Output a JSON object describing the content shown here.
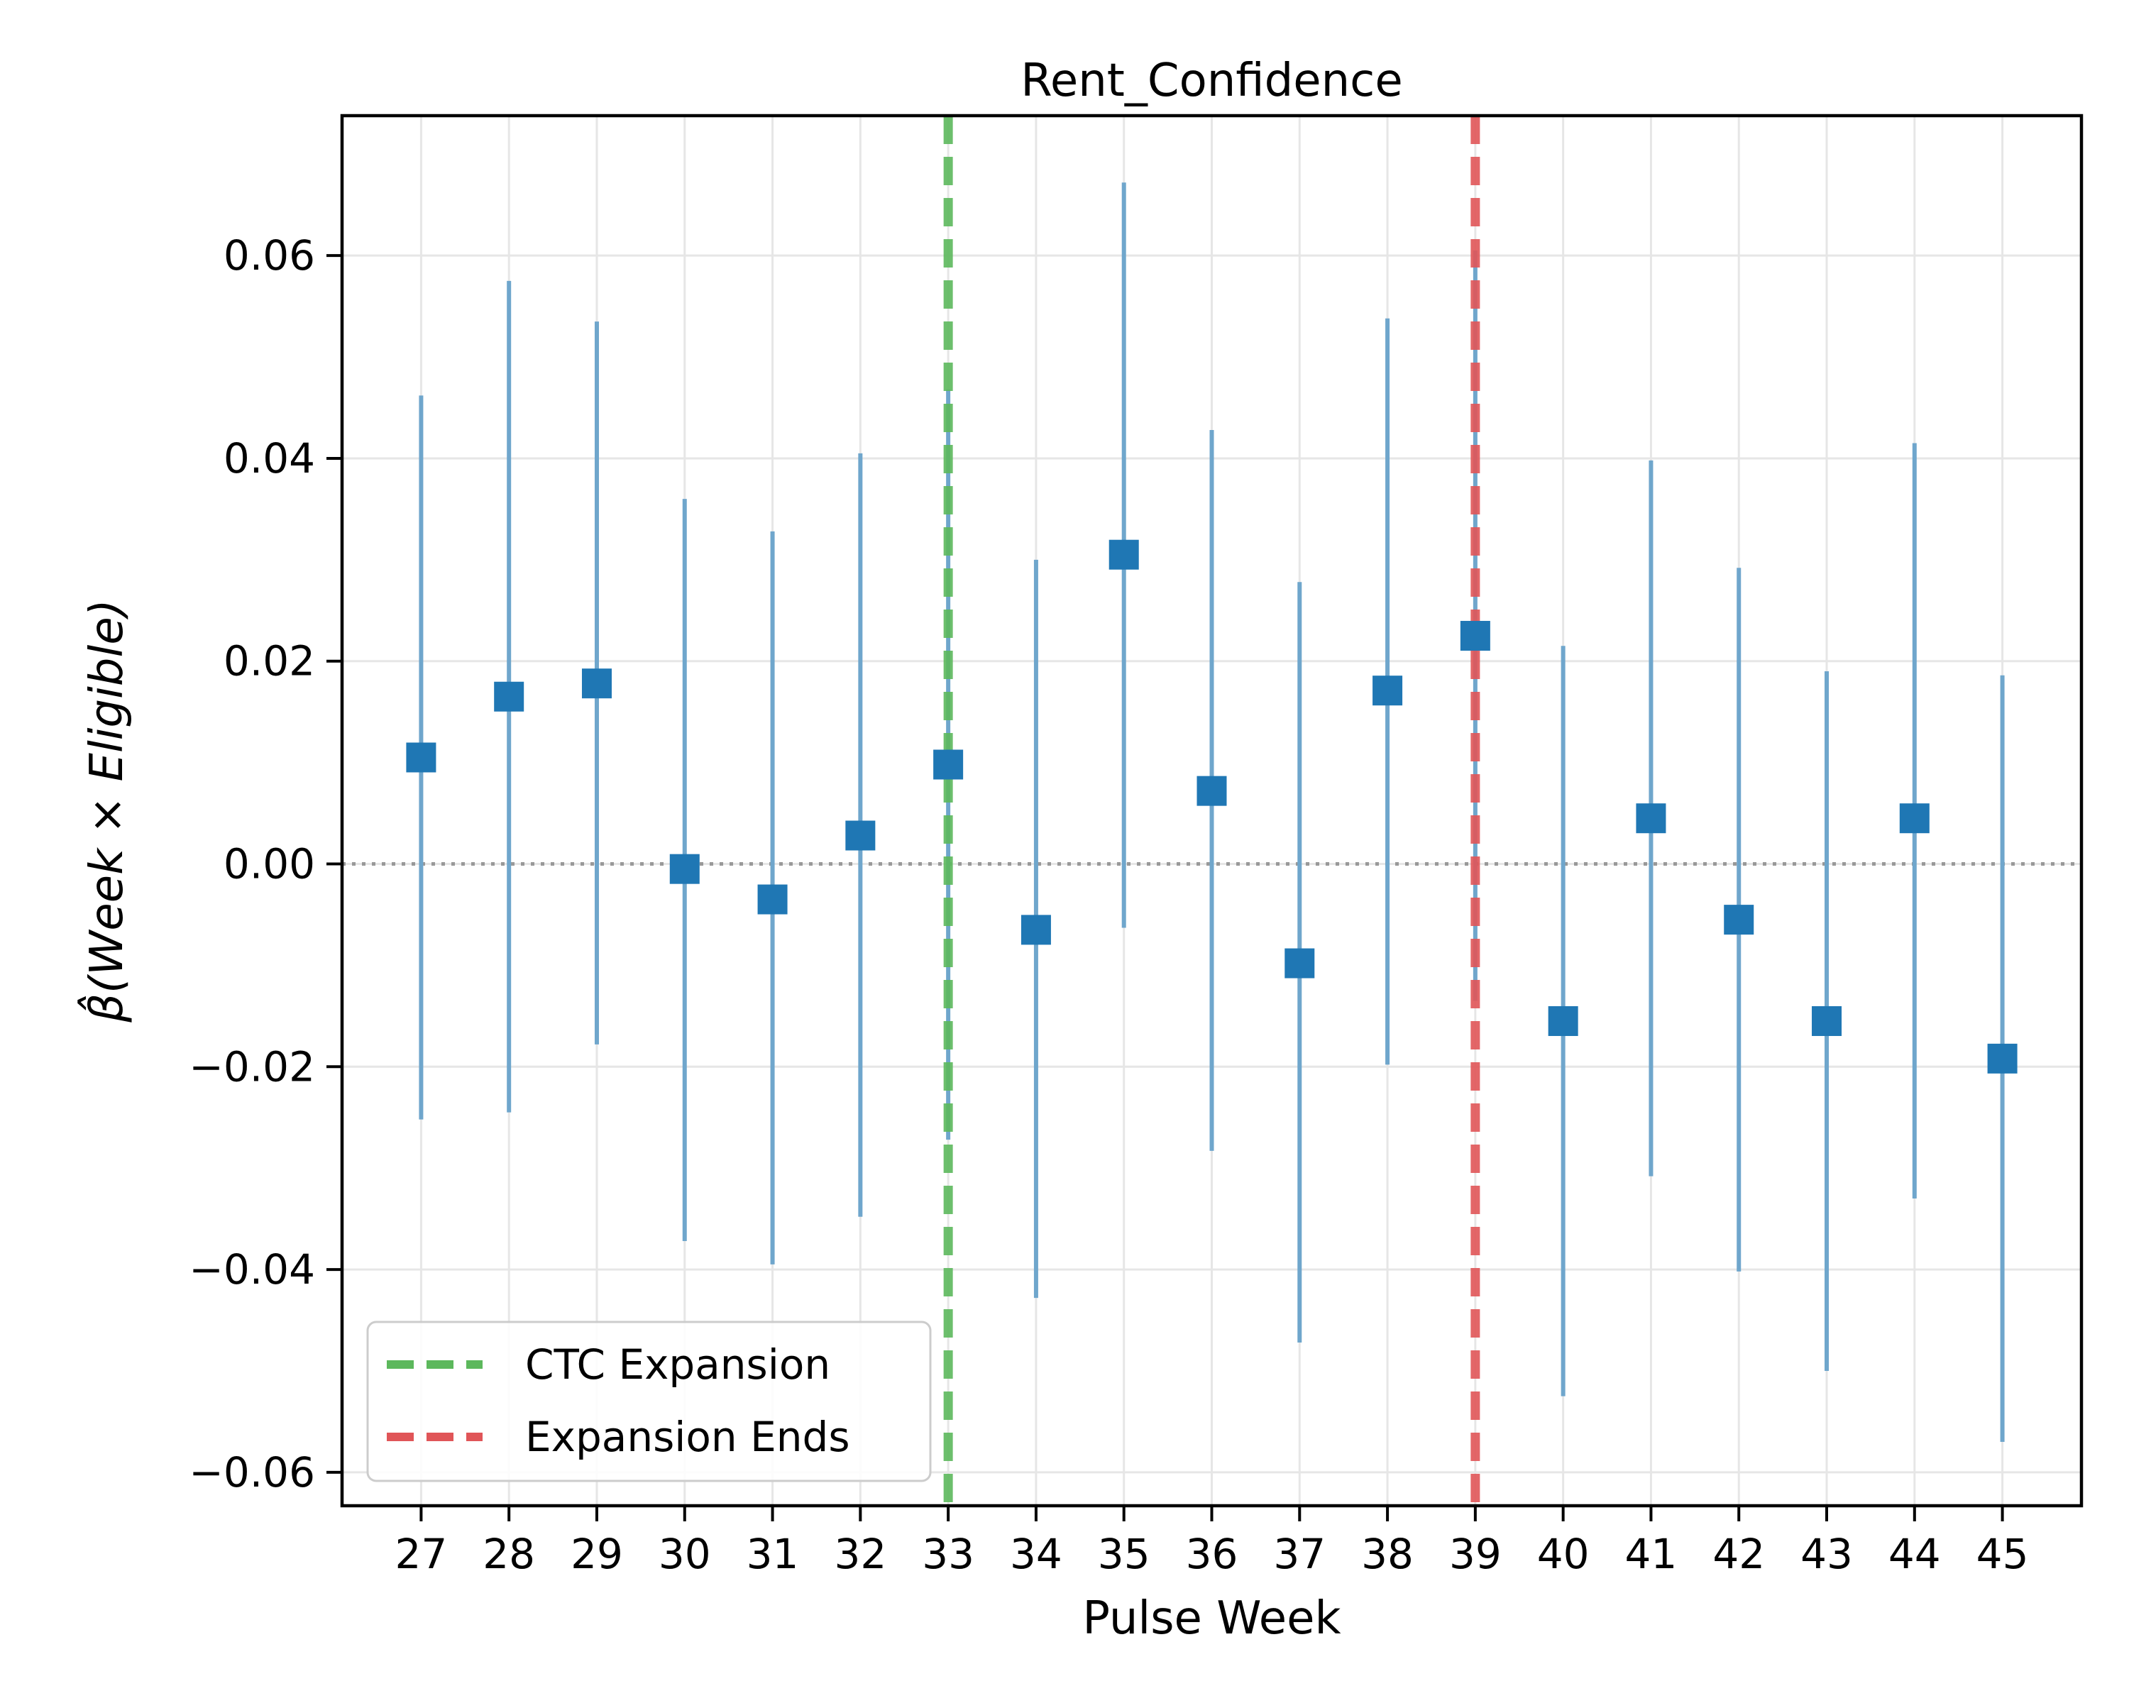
{
  "chart_data": {
    "type": "scatter",
    "title": "Rent_Confidence",
    "xlabel": "Pulse Week",
    "ylabel": "β̂(Week × Eligible)",
    "x": [
      27,
      28,
      29,
      30,
      31,
      32,
      33,
      34,
      35,
      36,
      37,
      38,
      39,
      40,
      41,
      42,
      43,
      44,
      45
    ],
    "y": [
      0.0105,
      0.0165,
      0.0178,
      -0.0005,
      -0.0035,
      0.0028,
      0.0098,
      -0.0065,
      0.0305,
      0.0072,
      -0.0098,
      0.0171,
      0.0225,
      -0.0155,
      0.0045,
      -0.0055,
      -0.0155,
      0.0045,
      -0.0192
    ],
    "ci_low": [
      -0.0252,
      -0.0245,
      -0.0178,
      -0.0372,
      -0.0395,
      -0.0348,
      -0.0272,
      -0.0428,
      -0.0063,
      -0.0283,
      -0.0472,
      -0.0198,
      -0.0135,
      -0.0525,
      -0.0308,
      -0.0402,
      -0.05,
      -0.033,
      -0.057
    ],
    "ci_high": [
      0.0462,
      0.0575,
      0.0535,
      0.036,
      0.0328,
      0.0405,
      0.0468,
      0.03,
      0.0672,
      0.0428,
      0.0278,
      0.0538,
      0.0605,
      0.0215,
      0.0398,
      0.0292,
      0.019,
      0.0415,
      0.0186
    ],
    "xlim": [
      26.1,
      45.9
    ],
    "ylim": [
      -0.0633,
      0.0738
    ],
    "yticks": [
      -0.06,
      -0.04,
      -0.02,
      0.0,
      0.02,
      0.04,
      0.06
    ],
    "ytick_labels": [
      "−0.06",
      "−0.04",
      "−0.02",
      "0.00",
      "0.02",
      "0.04",
      "0.06"
    ],
    "grid": true,
    "reference_line_y": 0,
    "vlines": [
      {
        "name": "CTC Expansion",
        "x": 33,
        "color": "#5cb85c"
      },
      {
        "name": "Expansion Ends",
        "x": 39,
        "color": "#e05558"
      }
    ],
    "legend_position": "lower-left",
    "colors": {
      "marker": "#1f77b4",
      "errorbar": "#6fa6cc",
      "zero_line": "#999999"
    }
  }
}
